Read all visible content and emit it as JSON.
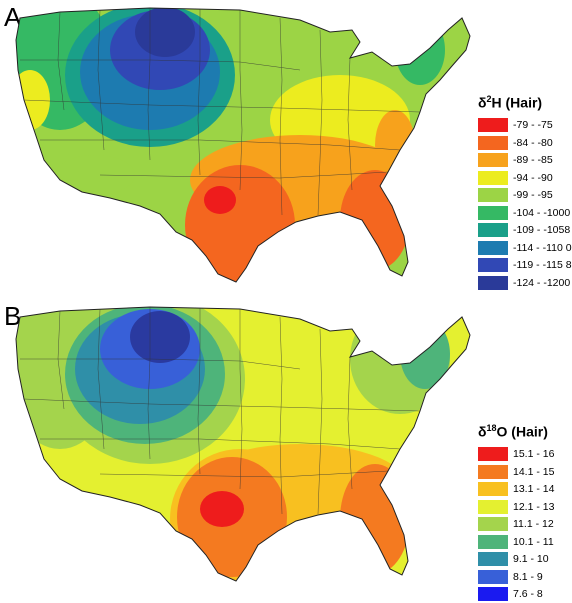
{
  "panels": [
    {
      "letter": "A",
      "legend_title_prefix": "δ",
      "legend_title_sup": "2",
      "legend_title_suffix": "H (Hair)",
      "legend": [
        {
          "label": "-79 - -75",
          "color": "#ee1c1c"
        },
        {
          "label": "-84 - -80",
          "color": "#f4661f"
        },
        {
          "label": "-89 - -85",
          "color": "#f7a21c"
        },
        {
          "label": "-94 - -90",
          "color": "#ecec1f"
        },
        {
          "label": "-99 - -95",
          "color": "#9cd445"
        },
        {
          "label": "-104 - -1000",
          "color": "#35b964"
        },
        {
          "label": "-109 - -1058",
          "color": "#1aa089"
        },
        {
          "label": "-114 - -110 0",
          "color": "#1d7bb0"
        },
        {
          "label": "-119 - -115 8",
          "color": "#3148b5"
        },
        {
          "label": "-124 - -1200",
          "color": "#2a3a99"
        }
      ]
    },
    {
      "letter": "B",
      "legend_title_prefix": "δ",
      "legend_title_sup": "18",
      "legend_title_suffix": "O (Hair)",
      "legend": [
        {
          "label": "15.1 - 16",
          "color": "#ee1c1c"
        },
        {
          "label": "14.1 - 15",
          "color": "#f47a20"
        },
        {
          "label": "13.1 - 14",
          "color": "#f8c020"
        },
        {
          "label": "12.1 - 13",
          "color": "#e4f030"
        },
        {
          "label": "11.1 - 12",
          "color": "#a4d44c"
        },
        {
          "label": "10.1 - 11",
          "color": "#4eb47a"
        },
        {
          "label": "9.1 - 10",
          "color": "#2f8fa8"
        },
        {
          "label": "8.1 - 9",
          "color": "#3860d8"
        },
        {
          "label": "7.6 - 8",
          "color": "#1a1af0"
        }
      ]
    }
  ]
}
